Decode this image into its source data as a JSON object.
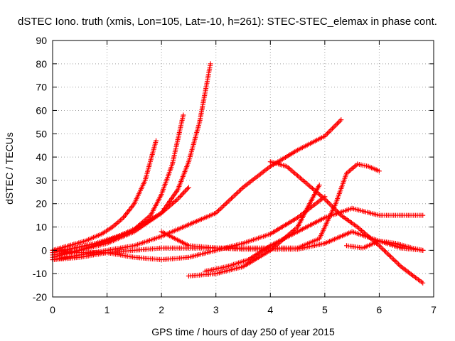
{
  "chart_data": {
    "type": "scatter",
    "title": "dSTEC Iono. truth (xmis, Lon=105, Lat=-10, h=261): STEC-STEC_elemax in phase cont.",
    "xlabel": "GPS time / hours of day 250 of year 2015",
    "ylabel": "dSTEC  / TECUs",
    "xlim": [
      0,
      7
    ],
    "ylim": [
      -20,
      90
    ],
    "xticks": [
      "0",
      "1",
      "2",
      "3",
      "4",
      "5",
      "6",
      "7"
    ],
    "yticks": [
      "-20",
      "-10",
      "0",
      "10",
      "20",
      "30",
      "40",
      "50",
      "60",
      "70",
      "80",
      "90"
    ],
    "grid": true,
    "marker_color": "#ff0000",
    "series": [
      {
        "x": [
          0.0,
          0.3,
          0.6,
          0.9,
          1.1,
          1.3,
          1.5,
          1.7,
          1.9
        ],
        "y": [
          0,
          2,
          4,
          7,
          10,
          14,
          20,
          30,
          47
        ]
      },
      {
        "x": [
          0.0,
          0.4,
          0.8,
          1.2,
          1.5,
          1.8,
          2.0,
          2.2,
          2.4
        ],
        "y": [
          -1,
          1,
          3,
          6,
          9,
          15,
          24,
          37,
          58
        ]
      },
      {
        "x": [
          0.0,
          0.5,
          1.0,
          1.5,
          2.0,
          2.3,
          2.5,
          2.7,
          2.9
        ],
        "y": [
          -2,
          0,
          3,
          8,
          16,
          26,
          38,
          55,
          80
        ]
      },
      {
        "x": [
          0.0,
          0.5,
          1.0,
          1.5,
          2.0,
          2.3,
          2.5
        ],
        "y": [
          -3,
          0,
          4,
          9,
          16,
          22,
          27
        ]
      },
      {
        "x": [
          0.0,
          0.5,
          1.0,
          1.5,
          2.0,
          2.5,
          3.0,
          3.5,
          4.0,
          4.5,
          5.0,
          5.3
        ],
        "y": [
          -4,
          -2,
          0,
          2,
          6,
          11,
          16,
          27,
          36,
          43,
          49,
          56
        ]
      },
      {
        "x": [
          0.0,
          0.5,
          1.0,
          1.5,
          2.0,
          2.5,
          3.0,
          3.5,
          4.0,
          4.5,
          5.0
        ],
        "y": [
          -4,
          -3,
          -1,
          -3,
          -4,
          -3,
          0,
          3,
          7,
          14,
          23
        ]
      },
      {
        "x": [
          2.0,
          2.5,
          3.0,
          3.5,
          4.0,
          4.5,
          5.0,
          5.5,
          6.0,
          6.4,
          6.8
        ],
        "y": [
          8,
          2,
          1,
          0.5,
          0.5,
          0.5,
          3,
          8,
          4,
          1,
          0
        ]
      },
      {
        "x": [
          0.0,
          0.5,
          1.0,
          1.5,
          2.0,
          2.5,
          3.0,
          3.5,
          4.0,
          4.5,
          4.9,
          5.0,
          5.2,
          5.4,
          5.6,
          5.8,
          6.0
        ],
        "y": [
          0,
          -1,
          -1,
          0,
          1,
          1,
          1,
          1,
          1,
          1,
          5,
          10,
          20,
          33,
          37,
          36,
          34
        ]
      },
      {
        "x": [
          2.5,
          3.0,
          3.5,
          4.0,
          4.5,
          4.9
        ],
        "y": [
          -11,
          -10,
          -7,
          0,
          10,
          28
        ]
      },
      {
        "x": [
          2.8,
          3.2,
          3.6,
          4.0,
          4.5,
          5.0,
          5.5,
          6.0,
          6.5,
          6.8
        ],
        "y": [
          -9,
          -7,
          -4,
          2,
          8,
          14,
          18,
          15,
          15,
          15
        ]
      },
      {
        "x": [
          4.0,
          4.3,
          4.6,
          5.0,
          5.3,
          5.6,
          6.0,
          6.4,
          6.8
        ],
        "y": [
          38,
          36,
          30,
          22,
          15,
          10,
          2,
          -7,
          -14
        ]
      },
      {
        "x": [
          5.4,
          5.7,
          6.0,
          6.3,
          6.6,
          6.8
        ],
        "y": [
          2,
          1,
          4,
          3,
          1,
          0
        ]
      }
    ]
  }
}
